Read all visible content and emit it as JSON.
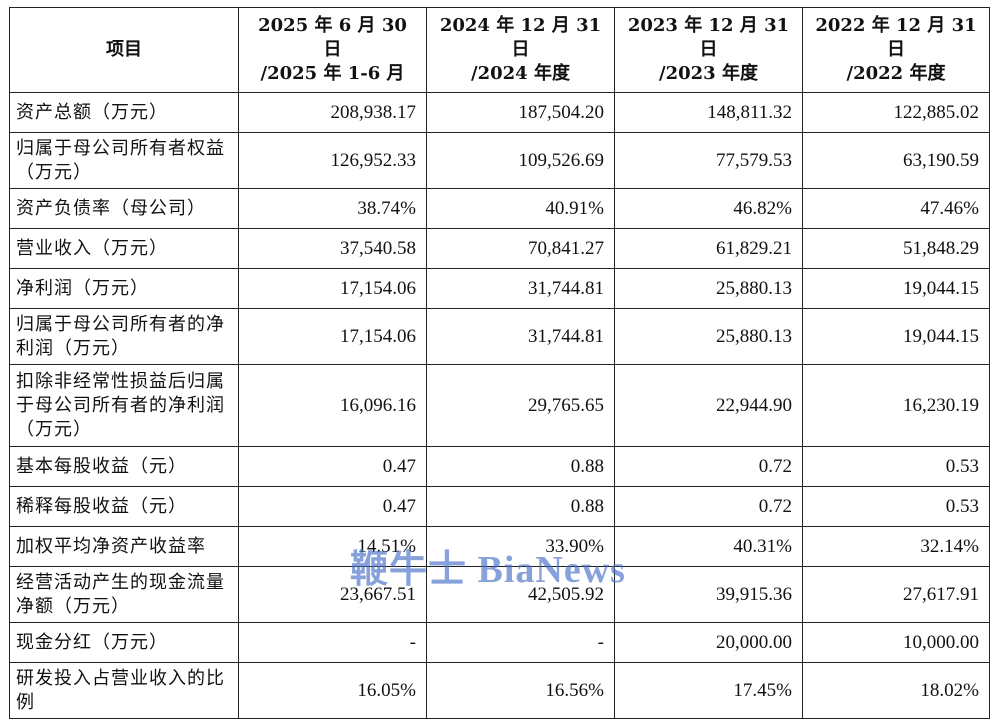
{
  "table": {
    "header": {
      "item_label": "项目",
      "columns": [
        {
          "line1": "2025 年 6 月 30 日",
          "line2": "/2025 年 1-6 月"
        },
        {
          "line1": "2024 年 12 月 31 日",
          "line2": "/2024 年度"
        },
        {
          "line1": "2023 年 12 月 31 日",
          "line2": "/2023 年度"
        },
        {
          "line1": "2022 年 12 月 31 日",
          "line2": "/2022 年度"
        }
      ]
    },
    "rows": [
      {
        "label": "资产总额（万元）",
        "values": [
          "208,938.17",
          "187,504.20",
          "148,811.32",
          "122,885.02"
        ]
      },
      {
        "label": "归属于母公司所有者权益（万元）",
        "values": [
          "126,952.33",
          "109,526.69",
          "77,579.53",
          "63,190.59"
        ]
      },
      {
        "label": "资产负债率（母公司）",
        "values": [
          "38.74%",
          "40.91%",
          "46.82%",
          "47.46%"
        ]
      },
      {
        "label": "营业收入（万元）",
        "values": [
          "37,540.58",
          "70,841.27",
          "61,829.21",
          "51,848.29"
        ]
      },
      {
        "label": "净利润（万元）",
        "values": [
          "17,154.06",
          "31,744.81",
          "25,880.13",
          "19,044.15"
        ]
      },
      {
        "label": "归属于母公司所有者的净利润（万元）",
        "values": [
          "17,154.06",
          "31,744.81",
          "25,880.13",
          "19,044.15"
        ]
      },
      {
        "label": "扣除非经常性损益后归属于母公司所有者的净利润（万元）",
        "values": [
          "16,096.16",
          "29,765.65",
          "22,944.90",
          "16,230.19"
        ]
      },
      {
        "label": "基本每股收益（元）",
        "values": [
          "0.47",
          "0.88",
          "0.72",
          "0.53"
        ]
      },
      {
        "label": "稀释每股收益（元）",
        "values": [
          "0.47",
          "0.88",
          "0.72",
          "0.53"
        ]
      },
      {
        "label": "加权平均净资产收益率",
        "values": [
          "14.51%",
          "33.90%",
          "40.31%",
          "32.14%"
        ]
      },
      {
        "label": "经营活动产生的现金流量净额（万元）",
        "values": [
          "23,667.51",
          "42,505.92",
          "39,915.36",
          "27,617.91"
        ]
      },
      {
        "label": "现金分红（万元）",
        "values": [
          "-",
          "-",
          "20,000.00",
          "10,000.00"
        ]
      },
      {
        "label": "研发投入占营业收入的比例",
        "values": [
          "16.05%",
          "16.56%",
          "17.45%",
          "18.02%"
        ]
      }
    ]
  },
  "watermark": {
    "text": "鞭牛士 BiaNews",
    "color": "#466ec8"
  }
}
